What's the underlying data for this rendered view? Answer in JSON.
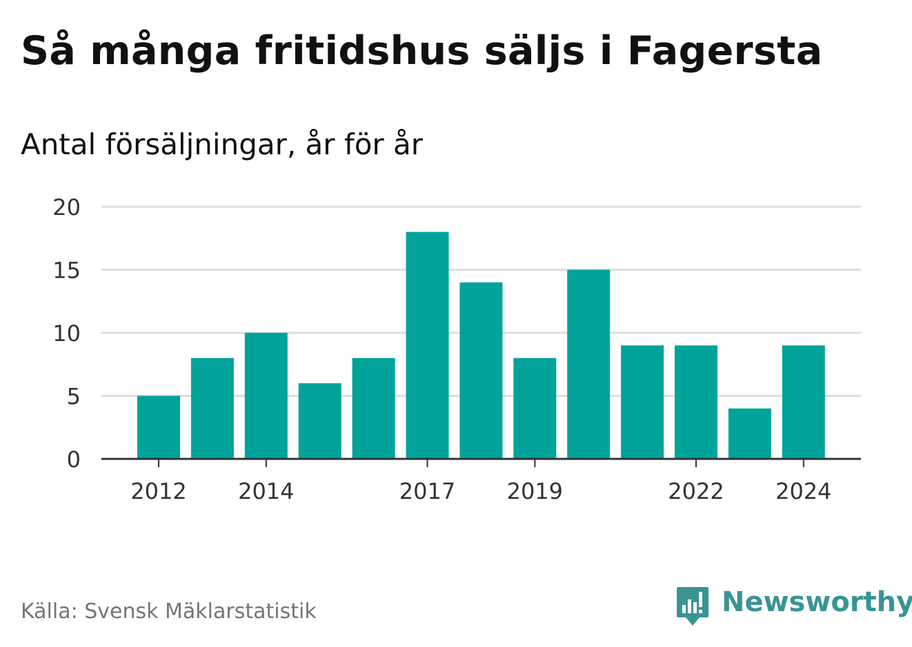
{
  "header": {
    "title": "Så många fritidshus säljs i Fagersta",
    "subtitle": "Antal försäljningar, år för år"
  },
  "footer": {
    "source": "Källa: Svensk Mäklarstatistik",
    "brand": "Newsworthy",
    "brand_icon": "bar-chart-speech-bubble-icon"
  },
  "colors": {
    "bar": "#00a39a",
    "grid": "#dddddd",
    "axis": "#333333",
    "brand": "#3a9493"
  },
  "chart_data": {
    "type": "bar",
    "categories": [
      "2012",
      "2013",
      "2014",
      "2015",
      "2016",
      "2017",
      "2018",
      "2019",
      "2020",
      "2021",
      "2022",
      "2023",
      "2024"
    ],
    "values": [
      5,
      8,
      10,
      6,
      8,
      18,
      14,
      8,
      15,
      9,
      9,
      4,
      9
    ],
    "x_tick_labels": [
      "2012",
      "2014",
      "2017",
      "2019",
      "2022",
      "2024"
    ],
    "y_ticks": [
      0,
      5,
      10,
      15,
      20
    ],
    "ylim": [
      0,
      20
    ],
    "xlabel": "",
    "ylabel": "",
    "grid": true
  }
}
